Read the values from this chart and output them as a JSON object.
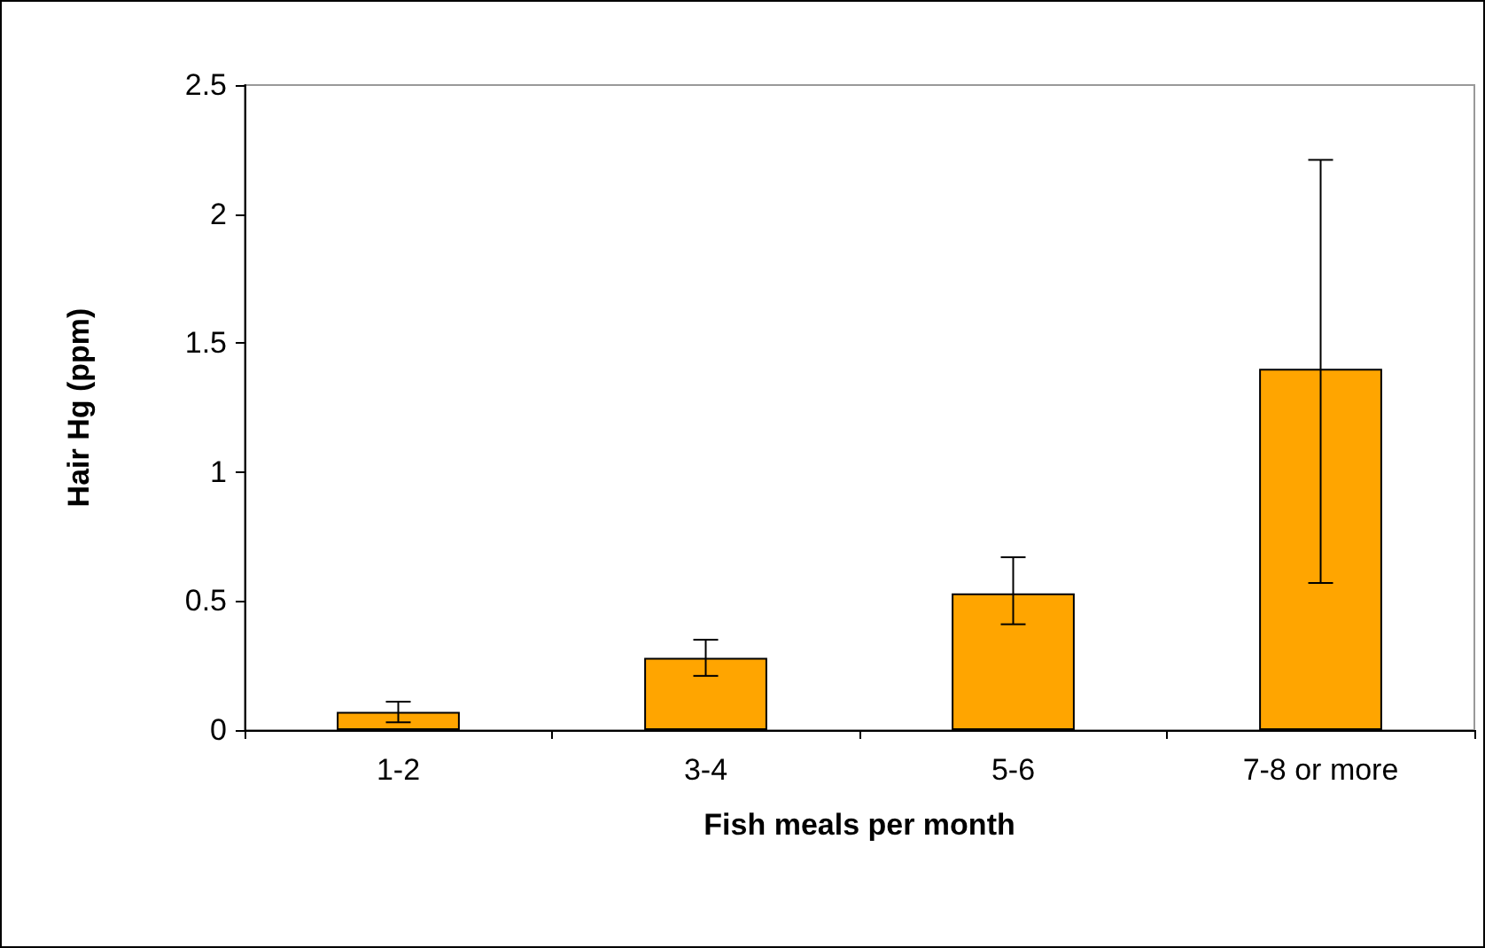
{
  "chart_data": {
    "type": "bar",
    "xlabel": "Fish meals per month",
    "ylabel": "Hair Hg (ppm)",
    "categories": [
      "1-2",
      "3-4",
      "5-6",
      "7-8 or more"
    ],
    "values": [
      0.07,
      0.28,
      0.53,
      1.4
    ],
    "errors": [
      [
        0.03,
        0.11
      ],
      [
        0.21,
        0.35
      ],
      [
        0.41,
        0.67
      ],
      [
        0.57,
        2.21
      ]
    ],
    "color": "#ffa500",
    "ylim": [
      0,
      2.5
    ],
    "yticks": [
      0,
      0.5,
      1,
      1.5,
      2,
      2.5
    ],
    "grid": false
  }
}
